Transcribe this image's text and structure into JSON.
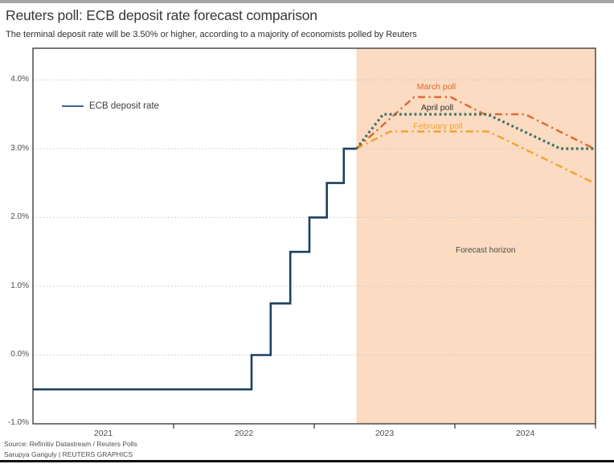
{
  "header": {
    "title": "Reuters poll: ECB deposit rate forecast comparison",
    "subtitle": "The terminal deposit rate will be 3.50% or higher, according to a majority of economists polled by Reuters"
  },
  "legend": {
    "label": "ECB deposit rate",
    "color": "#41688f"
  },
  "chart_data": {
    "type": "line",
    "x_domain": [
      2021,
      2025
    ],
    "y_domain": [
      -1.0,
      4.46
    ],
    "grid": true,
    "grid_values": [
      0,
      1,
      2,
      3,
      4
    ],
    "y_ticks": [
      {
        "value": 4.0,
        "label": "4.0%"
      },
      {
        "value": 3.0,
        "label": "3.0%"
      },
      {
        "value": 2.0,
        "label": "2.0%"
      },
      {
        "value": 1.0,
        "label": "1.0%"
      },
      {
        "value": 0.0,
        "label": "0.0%"
      },
      {
        "value": -1.0,
        "label": "-1.0%"
      }
    ],
    "x_ticks": [
      {
        "value": 2021.5,
        "label": "2021"
      },
      {
        "value": 2022.5,
        "label": "2022"
      },
      {
        "value": 2023.5,
        "label": "2023"
      },
      {
        "value": 2024.5,
        "label": "2024"
      }
    ],
    "x_boundary_ticks": [
      2022,
      2023,
      2024,
      2025
    ],
    "forecast_region": {
      "start": 2023.3,
      "end": 2025,
      "fill": "#fbdbc2",
      "label": "Forecast horizon"
    },
    "series": [
      {
        "name": "ECB deposit rate",
        "color": "#1b4161",
        "style": "solid",
        "points": [
          [
            2021.0,
            -0.5
          ],
          [
            2022.554,
            -0.5
          ],
          [
            2022.554,
            0.0
          ],
          [
            2022.69,
            0.0
          ],
          [
            2022.69,
            0.75
          ],
          [
            2022.83,
            0.75
          ],
          [
            2022.83,
            1.5
          ],
          [
            2022.966,
            1.5
          ],
          [
            2022.966,
            2.0
          ],
          [
            2023.09,
            2.0
          ],
          [
            2023.09,
            2.5
          ],
          [
            2023.21,
            2.5
          ],
          [
            2023.21,
            3.0
          ],
          [
            2023.3,
            3.0
          ]
        ]
      },
      {
        "name": "March poll",
        "color": "#e2662d",
        "style": "dashdot",
        "points": [
          [
            2023.3,
            3.0
          ],
          [
            2023.71,
            3.75
          ],
          [
            2023.97,
            3.75
          ],
          [
            2024.21,
            3.5
          ],
          [
            2024.5,
            3.5
          ],
          [
            2024.99,
            3.0
          ]
        ]
      },
      {
        "name": "February poll",
        "color": "#f4a12f",
        "style": "dashdot",
        "points": [
          [
            2023.3,
            3.0
          ],
          [
            2023.54,
            3.25
          ],
          [
            2024.24,
            3.25
          ],
          [
            2024.99,
            2.5
          ]
        ]
      },
      {
        "name": "April poll",
        "color": "#3f7365",
        "style": "dotted",
        "points": [
          [
            2023.3,
            3.0
          ],
          [
            2023.49,
            3.5
          ],
          [
            2024.23,
            3.5
          ],
          [
            2024.75,
            3.0
          ],
          [
            2024.99,
            3.0
          ]
        ]
      }
    ]
  },
  "annotations": [
    {
      "text": "March poll",
      "color": "#e2662d"
    },
    {
      "text": "April poll",
      "color": "#2e2e2e"
    },
    {
      "text": "February poll",
      "color": "#f4a12f"
    }
  ],
  "footer": {
    "source": "Source: Refinitiv Datastream / Reuters Polls",
    "credit": "Sarupya Ganguly | REUTERS GRAPHICS"
  }
}
